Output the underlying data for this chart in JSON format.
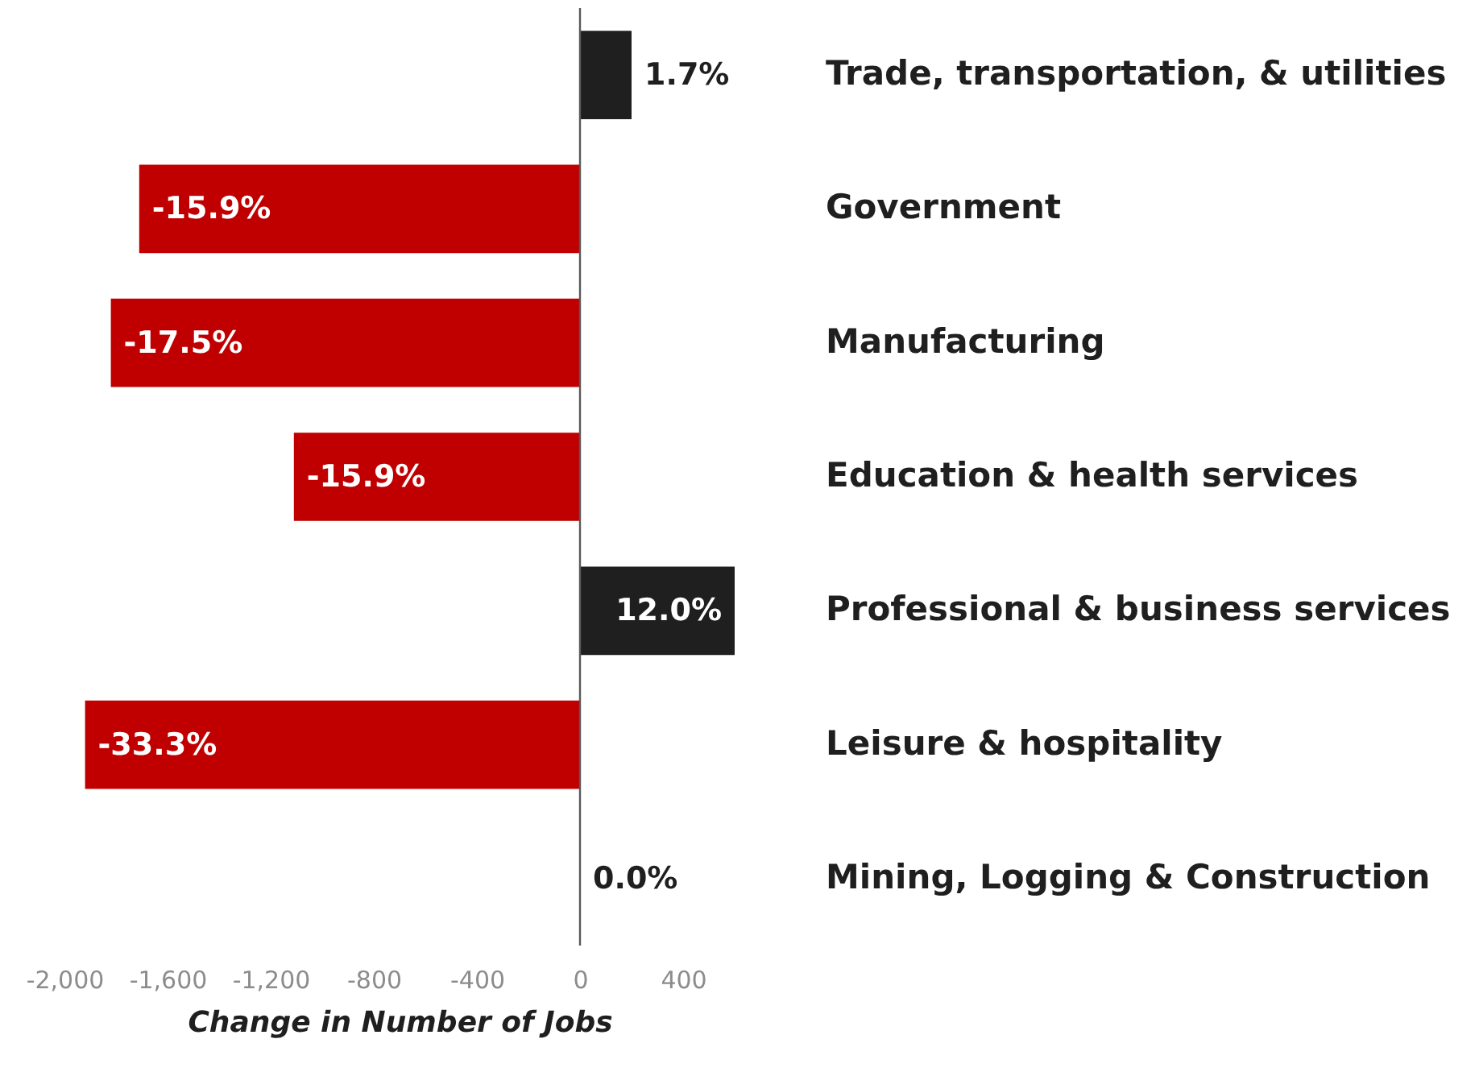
{
  "chart_data": {
    "type": "bar",
    "orientation": "horizontal",
    "xlabel": "Change in Number of Jobs",
    "categories": [
      "Trade, transportation, & utilities",
      "Government",
      "Manufacturing",
      "Education & health services",
      "Professional & business services",
      "Leisure & hospitality",
      "Mining, Logging & Construction"
    ],
    "values": [
      200,
      -1710,
      -1820,
      -1110,
      600,
      -1920,
      0
    ],
    "colors": [
      "#1f1f1f",
      "#c00000",
      "#c00000",
      "#c00000",
      "#1f1f1f",
      "#c00000",
      "#1f1f1f"
    ],
    "annotations": [
      {
        "text": "1.7%",
        "x": 200,
        "y": "Trade, transportation, & utilities"
      },
      {
        "text": "-15.9%",
        "x": -1710,
        "y": "Government"
      },
      {
        "text": "-17.5%",
        "x": -1820,
        "y": "Manufacturing"
      },
      {
        "text": "-15.9%",
        "x": -1110,
        "y": "Education & health services"
      },
      {
        "text": "12.0%",
        "x": 600,
        "y": "Professional & business services"
      },
      {
        "text": "-33.3%",
        "x": -1920,
        "y": "Leisure & hospitality"
      },
      {
        "text": "0.0%",
        "x": 0,
        "y": "Mining, Logging & Construction"
      }
    ],
    "ref_lines": [
      {
        "axis": "x",
        "value": 0,
        "color": "#595959"
      }
    ],
    "grid": false,
    "xlim": [
      -2000,
      600
    ],
    "xticks": [
      {
        "value": -2000,
        "label": "-2,000"
      },
      {
        "value": -1600,
        "label": "-1,600"
      },
      {
        "value": -1200,
        "label": "-1,200"
      },
      {
        "value": -800,
        "label": "-800"
      },
      {
        "value": -400,
        "label": "-400"
      },
      0,
      400
    ]
  }
}
